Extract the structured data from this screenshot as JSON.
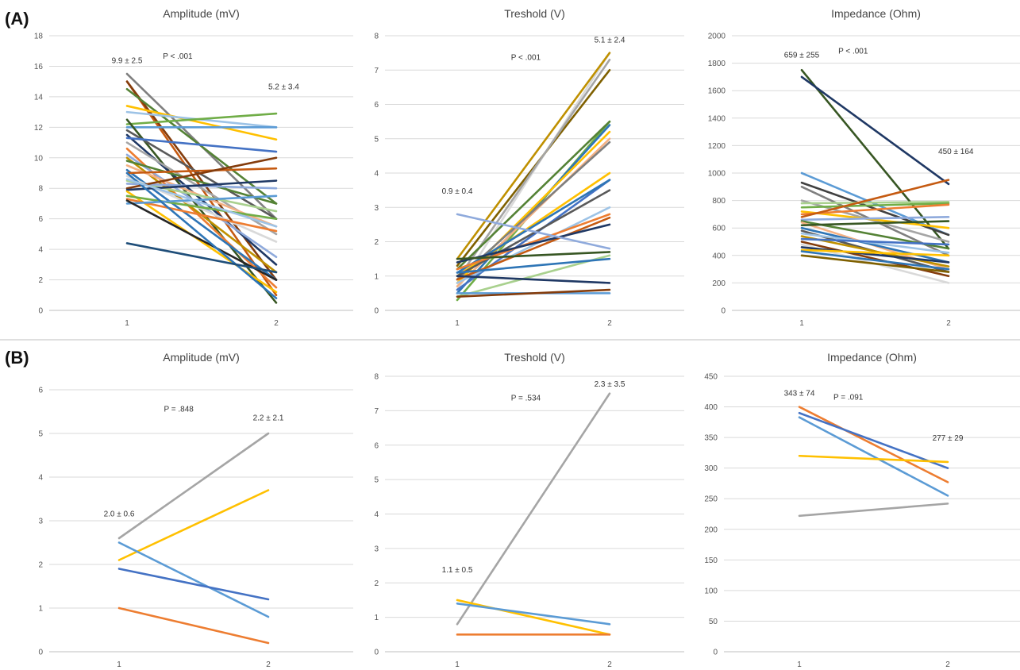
{
  "panels": [
    {
      "label": "(A)"
    },
    {
      "label": "(B)"
    }
  ],
  "chart_data": [
    {
      "type": "line",
      "panel": "(A)",
      "title": "Amplitude (mV)",
      "categories": [
        "1",
        "2"
      ],
      "ylim": [
        0,
        18
      ],
      "ystep": 2,
      "grid": true,
      "annotations": [
        {
          "text": "9.9 ± 2.5",
          "x": 1,
          "y": 16.2
        },
        {
          "text": "P < .001",
          "x": 1.34,
          "y": 16.5
        },
        {
          "text": "5.2 ± 3.4",
          "x": 2.05,
          "y": 14.5
        }
      ],
      "series": [
        {
          "values": [
            15.5,
            6.0
          ],
          "color": "#7f7f7f"
        },
        {
          "values": [
            15.0,
            1.0
          ],
          "color": "#c55a11"
        },
        {
          "values": [
            15.0,
            2.0
          ],
          "color": "#843c0c"
        },
        {
          "values": [
            14.5,
            7.0
          ],
          "color": "#548235"
        },
        {
          "values": [
            13.4,
            11.2
          ],
          "color": "#ffc000"
        },
        {
          "values": [
            13.0,
            12.0
          ],
          "color": "#9dc3e6"
        },
        {
          "values": [
            12.2,
            12.9
          ],
          "color": "#70ad47"
        },
        {
          "values": [
            12.0,
            12.0
          ],
          "color": "#5b9bd5"
        },
        {
          "values": [
            12.5,
            0.5
          ],
          "color": "#375623"
        },
        {
          "values": [
            11.8,
            6.0
          ],
          "color": "#595959"
        },
        {
          "values": [
            11.5,
            3.0
          ],
          "color": "#1f3864"
        },
        {
          "values": [
            11.3,
            10.4
          ],
          "color": "#4472c4"
        },
        {
          "values": [
            11.0,
            5.0
          ],
          "color": "#a5a5a5"
        },
        {
          "values": [
            10.6,
            1.5
          ],
          "color": "#ed7d31"
        },
        {
          "values": [
            10.2,
            3.5
          ],
          "color": "#8faadc"
        },
        {
          "values": [
            10.0,
            2.5
          ],
          "color": "#bf9000"
        },
        {
          "values": [
            9.8,
            7.0
          ],
          "color": "#548235"
        },
        {
          "values": [
            9.5,
            5.5
          ],
          "color": "#f4b183"
        },
        {
          "values": [
            9.2,
            2.0
          ],
          "color": "#2e75b6"
        },
        {
          "values": [
            9.0,
            9.3
          ],
          "color": "#c55a11"
        },
        {
          "values": [
            8.8,
            4.5
          ],
          "color": "#d9d9d9"
        },
        {
          "values": [
            8.5,
            6.5
          ],
          "color": "#a9d18e"
        },
        {
          "values": [
            8.3,
            8.0
          ],
          "color": "#8faadc"
        },
        {
          "values": [
            8.0,
            10.0
          ],
          "color": "#843c0c"
        },
        {
          "values": [
            7.9,
            8.5
          ],
          "color": "#1f3864"
        },
        {
          "values": [
            7.8,
            1.2
          ],
          "color": "#ffc000"
        },
        {
          "values": [
            7.5,
            6.0
          ],
          "color": "#70ad47"
        },
        {
          "values": [
            7.3,
            5.2
          ],
          "color": "#ed7d31"
        },
        {
          "values": [
            7.0,
            7.5
          ],
          "color": "#5b9bd5"
        },
        {
          "values": [
            7.2,
            2.0
          ],
          "color": "#262626"
        },
        {
          "values": [
            9.0,
            0.8
          ],
          "color": "#2e75b6"
        },
        {
          "values": [
            8.6,
            5.5
          ],
          "color": "#9dc3e6"
        },
        {
          "values": [
            4.4,
            2.5
          ],
          "color": "#1f4e79"
        }
      ]
    },
    {
      "type": "line",
      "panel": "(A)",
      "title": "Treshold (V)",
      "categories": [
        "1",
        "2"
      ],
      "ylim": [
        0,
        8
      ],
      "ystep": 1,
      "grid": true,
      "annotations": [
        {
          "text": "0.9 ± 0.4",
          "x": 1,
          "y": 3.4
        },
        {
          "text": "P < .001",
          "x": 1.45,
          "y": 7.3
        },
        {
          "text": "5.1 ± 2.4",
          "x": 2,
          "y": 7.8
        }
      ],
      "series": [
        {
          "values": [
            0.6,
            7.5
          ],
          "color": "#d9d9d9"
        },
        {
          "values": [
            1.5,
            7.5
          ],
          "color": "#bf9000"
        },
        {
          "values": [
            1.3,
            7.0
          ],
          "color": "#7f6000"
        },
        {
          "values": [
            0.9,
            7.3
          ],
          "color": "#a5a5a5"
        },
        {
          "values": [
            0.3,
            5.5
          ],
          "color": "#70ad47"
        },
        {
          "values": [
            1.2,
            5.5
          ],
          "color": "#548235"
        },
        {
          "values": [
            0.5,
            5.4
          ],
          "color": "#2e75b6"
        },
        {
          "values": [
            0.8,
            5.2
          ],
          "color": "#ffc000"
        },
        {
          "values": [
            0.7,
            5.0
          ],
          "color": "#f4b183"
        },
        {
          "values": [
            0.9,
            4.9
          ],
          "color": "#7f7f7f"
        },
        {
          "values": [
            1.0,
            4.0
          ],
          "color": "#ffc000"
        },
        {
          "values": [
            0.6,
            3.8
          ],
          "color": "#4472c4"
        },
        {
          "values": [
            1.1,
            3.8
          ],
          "color": "#2e75b6"
        },
        {
          "values": [
            1.0,
            3.5
          ],
          "color": "#595959"
        },
        {
          "values": [
            0.8,
            3.0
          ],
          "color": "#9dc3e6"
        },
        {
          "values": [
            1.2,
            2.8
          ],
          "color": "#ed7d31"
        },
        {
          "values": [
            0.9,
            2.7
          ],
          "color": "#c55a11"
        },
        {
          "values": [
            1.4,
            2.5
          ],
          "color": "#1f3864"
        },
        {
          "values": [
            2.8,
            1.8
          ],
          "color": "#8faadc"
        },
        {
          "values": [
            1.5,
            1.7
          ],
          "color": "#375623"
        },
        {
          "values": [
            0.4,
            1.6
          ],
          "color": "#a9d18e"
        },
        {
          "values": [
            1.1,
            1.5
          ],
          "color": "#2e75b6"
        },
        {
          "values": [
            1.0,
            0.8
          ],
          "color": "#1f3864"
        },
        {
          "values": [
            0.5,
            0.5
          ],
          "color": "#5b9bd5"
        },
        {
          "values": [
            0.4,
            0.6
          ],
          "color": "#843c0c"
        }
      ]
    },
    {
      "type": "line",
      "panel": "(A)",
      "title": "Impedance (Ohm)",
      "categories": [
        "1",
        "2"
      ],
      "ylim": [
        0,
        2000
      ],
      "ystep": 200,
      "grid": true,
      "annotations": [
        {
          "text": "659 ± 255",
          "x": 1,
          "y": 1840
        },
        {
          "text": "P < .001",
          "x": 1.35,
          "y": 1870
        },
        {
          "text": "450 ± 164",
          "x": 2.05,
          "y": 1140
        }
      ],
      "series": [
        {
          "values": [
            1750,
            450
          ],
          "color": "#375623"
        },
        {
          "values": [
            1700,
            920
          ],
          "color": "#1f3864"
        },
        {
          "values": [
            1000,
            550
          ],
          "color": "#5b9bd5"
        },
        {
          "values": [
            930,
            550
          ],
          "color": "#404040"
        },
        {
          "values": [
            900,
            400
          ],
          "color": "#7f7f7f"
        },
        {
          "values": [
            800,
            500
          ],
          "color": "#a5a5a5"
        },
        {
          "values": [
            780,
            790
          ],
          "color": "#a9d18e"
        },
        {
          "values": [
            750,
            780
          ],
          "color": "#70ad47"
        },
        {
          "values": [
            720,
            600
          ],
          "color": "#ffc000"
        },
        {
          "values": [
            700,
            770
          ],
          "color": "#ed7d31"
        },
        {
          "values": [
            680,
            950
          ],
          "color": "#c55a11"
        },
        {
          "values": [
            660,
            680
          ],
          "color": "#8faadc"
        },
        {
          "values": [
            650,
            450
          ],
          "color": "#548235"
        },
        {
          "values": [
            640,
            300
          ],
          "color": "#f4b183"
        },
        {
          "values": [
            620,
            650
          ],
          "color": "#375623"
        },
        {
          "values": [
            600,
            350
          ],
          "color": "#2e75b6"
        },
        {
          "values": [
            580,
            280
          ],
          "color": "#595959"
        },
        {
          "values": [
            560,
            420
          ],
          "color": "#9dc3e6"
        },
        {
          "values": [
            540,
            320
          ],
          "color": "#bf9000"
        },
        {
          "values": [
            520,
            480
          ],
          "color": "#4472c4"
        },
        {
          "values": [
            500,
            250
          ],
          "color": "#843c0c"
        },
        {
          "values": [
            480,
            200
          ],
          "color": "#d9d9d9"
        },
        {
          "values": [
            460,
            350
          ],
          "color": "#1f3864"
        },
        {
          "values": [
            440,
            400
          ],
          "color": "#ffc000"
        },
        {
          "values": [
            430,
            300
          ],
          "color": "#2e75b6"
        },
        {
          "values": [
            400,
            280
          ],
          "color": "#7f6000"
        }
      ]
    },
    {
      "type": "line",
      "panel": "(B)",
      "title": "Amplitude (mV)",
      "categories": [
        "1",
        "2"
      ],
      "ylim": [
        0,
        6
      ],
      "ystep": 1,
      "grid": true,
      "annotations": [
        {
          "text": "2.0 ± 0.6",
          "x": 1,
          "y": 3.1
        },
        {
          "text": "P = .848",
          "x": 1.4,
          "y": 5.5
        },
        {
          "text": "2.2 ± 2.1",
          "x": 2,
          "y": 5.3
        }
      ],
      "series": [
        {
          "values": [
            2.6,
            5.0
          ],
          "color": "#a5a5a5"
        },
        {
          "values": [
            2.1,
            3.7
          ],
          "color": "#ffc000"
        },
        {
          "values": [
            2.5,
            0.8
          ],
          "color": "#5b9bd5"
        },
        {
          "values": [
            1.9,
            1.2
          ],
          "color": "#4472c4"
        },
        {
          "values": [
            1.0,
            0.2
          ],
          "color": "#ed7d31"
        }
      ]
    },
    {
      "type": "line",
      "panel": "(B)",
      "title": "Treshold (V)",
      "categories": [
        "1",
        "2"
      ],
      "ylim": [
        0,
        8
      ],
      "ystep": 1,
      "grid": true,
      "annotations": [
        {
          "text": "1.1 ± 0.5",
          "x": 1,
          "y": 2.3
        },
        {
          "text": "P = .534",
          "x": 1.45,
          "y": 7.3
        },
        {
          "text": "2.3 ± 3.5",
          "x": 2,
          "y": 7.7
        }
      ],
      "series": [
        {
          "values": [
            0.8,
            7.5
          ],
          "color": "#a5a5a5"
        },
        {
          "values": [
            1.5,
            0.5
          ],
          "color": "#ffc000"
        },
        {
          "values": [
            1.4,
            0.8
          ],
          "color": "#5b9bd5"
        },
        {
          "values": [
            0.5,
            0.5
          ],
          "color": "#ed7d31"
        }
      ]
    },
    {
      "type": "line",
      "panel": "(B)",
      "title": "Impedance (Ohm)",
      "categories": [
        "1",
        "2"
      ],
      "ylim": [
        0,
        450
      ],
      "ystep": 50,
      "grid": true,
      "annotations": [
        {
          "text": "343 ± 74",
          "x": 1,
          "y": 418
        },
        {
          "text": "P = .091",
          "x": 1.33,
          "y": 412
        },
        {
          "text": "277 ± 29",
          "x": 2,
          "y": 345
        }
      ],
      "series": [
        {
          "values": [
            400,
            277
          ],
          "color": "#ed7d31"
        },
        {
          "values": [
            390,
            300
          ],
          "color": "#4472c4"
        },
        {
          "values": [
            383,
            255
          ],
          "color": "#5b9bd5"
        },
        {
          "values": [
            320,
            310
          ],
          "color": "#ffc000"
        },
        {
          "values": [
            222,
            242
          ],
          "color": "#a5a5a5"
        }
      ]
    }
  ]
}
